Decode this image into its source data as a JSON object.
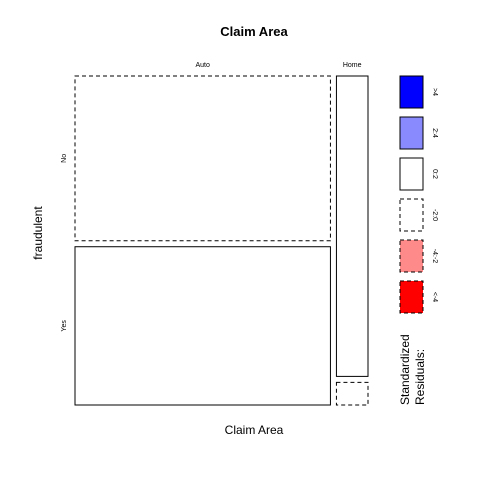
{
  "chart_data": {
    "type": "mosaic",
    "title": "Claim Area",
    "xlabel": "Claim Area",
    "ylabel": "fraudulent",
    "x_categories": [
      "Auto",
      "Home"
    ],
    "y_categories": [
      "No",
      "Yes"
    ],
    "column_widths": [
      0.89,
      0.11
    ],
    "column_heights": {
      "Auto": [
        0.51,
        0.49
      ],
      "Home": [
        0.93,
        0.07
      ]
    },
    "cells": [
      {
        "x": "Auto",
        "y": "No",
        "residual_band": "-2:0"
      },
      {
        "x": "Auto",
        "y": "Yes",
        "residual_band": "0:2"
      },
      {
        "x": "Home",
        "y": "No",
        "residual_band": "0:2"
      },
      {
        "x": "Home",
        "y": "Yes",
        "residual_band": "-2:0"
      }
    ],
    "legend": {
      "title_line1": "Standardized",
      "title_line2": "Residuals:",
      "entries": [
        {
          "label": ">4",
          "color": "#0000FF",
          "dashed": false
        },
        {
          "label": "2:4",
          "color": "#8A8AFF",
          "dashed": false
        },
        {
          "label": "0:2",
          "color": "#FFFFFF",
          "dashed": false
        },
        {
          "label": "-2:0",
          "color": "#FFFFFF",
          "dashed": true
        },
        {
          "label": "-4:-2",
          "color": "#FF8A8A",
          "dashed": true
        },
        {
          "label": "<-4",
          "color": "#FF0000",
          "dashed": true
        }
      ]
    }
  }
}
